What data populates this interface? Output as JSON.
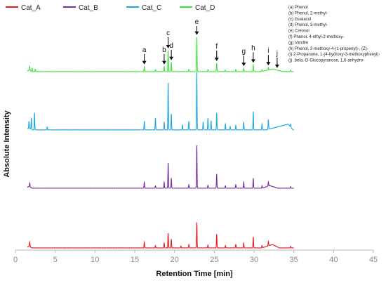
{
  "chart_data": {
    "type": "line",
    "title": "",
    "xlabel": "Retention Time [min]",
    "ylabel": "Absolute Intensity",
    "xlim": [
      0,
      45
    ],
    "x_ticks": [
      0,
      5,
      10,
      15,
      20,
      25,
      30,
      35,
      40,
      45
    ],
    "y_ticks": "none",
    "grid": false,
    "legend_position": "top-left",
    "offset_stacked": true,
    "series": [
      {
        "name": "Cat_A",
        "color": "#e8191c",
        "baseline_rel": 0.0,
        "peaks": [
          {
            "x": 1.8,
            "h": 0.1
          },
          {
            "x": 16.2,
            "h": 0.12
          },
          {
            "x": 17.6,
            "h": 0.05
          },
          {
            "x": 18.7,
            "h": 0.1
          },
          {
            "x": 19.2,
            "h": 0.3
          },
          {
            "x": 19.6,
            "h": 0.18
          },
          {
            "x": 20.8,
            "h": 0.04
          },
          {
            "x": 21.8,
            "h": 0.07
          },
          {
            "x": 22.8,
            "h": 0.52
          },
          {
            "x": 24.2,
            "h": 0.06
          },
          {
            "x": 25.3,
            "h": 0.28
          },
          {
            "x": 26.4,
            "h": 0.05
          },
          {
            "x": 27.7,
            "h": 0.07
          },
          {
            "x": 28.7,
            "h": 0.1
          },
          {
            "x": 29.9,
            "h": 0.22
          },
          {
            "x": 31.0,
            "h": 0.05
          },
          {
            "x": 31.8,
            "h": 0.09
          },
          {
            "x": 34.6,
            "h": 0.03
          }
        ],
        "hump": {
          "start": 31.0,
          "peak": 32.3,
          "end": 33.2,
          "h": 0.07
        }
      },
      {
        "name": "Cat_B",
        "color": "#7a2e9e",
        "baseline_rel": 0.0,
        "peaks": [
          {
            "x": 1.8,
            "h": 0.08
          },
          {
            "x": 16.2,
            "h": 0.12
          },
          {
            "x": 17.6,
            "h": 0.05
          },
          {
            "x": 18.7,
            "h": 0.12
          },
          {
            "x": 19.2,
            "h": 0.5
          },
          {
            "x": 19.6,
            "h": 0.2
          },
          {
            "x": 21.8,
            "h": 0.07
          },
          {
            "x": 22.8,
            "h": 0.85
          },
          {
            "x": 24.2,
            "h": 0.06
          },
          {
            "x": 25.3,
            "h": 0.28
          },
          {
            "x": 26.4,
            "h": 0.05
          },
          {
            "x": 27.7,
            "h": 0.07
          },
          {
            "x": 28.7,
            "h": 0.12
          },
          {
            "x": 29.9,
            "h": 0.2
          },
          {
            "x": 31.0,
            "h": 0.05
          },
          {
            "x": 31.8,
            "h": 0.09
          },
          {
            "x": 34.6,
            "h": 0.03
          }
        ],
        "hump": {
          "start": 31.0,
          "peak": 32.0,
          "end": 33.0,
          "h": 0.05
        }
      },
      {
        "name": "Cat_C",
        "color": "#1ea7e1",
        "baseline_rel": 0.0,
        "peaks": [
          {
            "x": 1.7,
            "h": 0.12
          },
          {
            "x": 2.0,
            "h": 0.2
          },
          {
            "x": 2.4,
            "h": 0.3
          },
          {
            "x": 4.0,
            "h": 0.05
          },
          {
            "x": 16.2,
            "h": 0.15
          },
          {
            "x": 17.6,
            "h": 0.2
          },
          {
            "x": 18.7,
            "h": 0.14
          },
          {
            "x": 19.2,
            "h": 0.82
          },
          {
            "x": 19.6,
            "h": 0.28
          },
          {
            "x": 21.0,
            "h": 0.08
          },
          {
            "x": 21.8,
            "h": 0.15
          },
          {
            "x": 22.8,
            "h": 1.0
          },
          {
            "x": 23.6,
            "h": 0.14
          },
          {
            "x": 24.2,
            "h": 0.2
          },
          {
            "x": 24.6,
            "h": 0.16
          },
          {
            "x": 25.3,
            "h": 0.3
          },
          {
            "x": 26.4,
            "h": 0.1
          },
          {
            "x": 27.0,
            "h": 0.06
          },
          {
            "x": 27.7,
            "h": 0.08
          },
          {
            "x": 28.7,
            "h": 0.14
          },
          {
            "x": 29.9,
            "h": 0.32
          },
          {
            "x": 31.0,
            "h": 0.1
          },
          {
            "x": 31.8,
            "h": 0.17
          },
          {
            "x": 34.6,
            "h": 0.05
          }
        ],
        "hump": {
          "start": 31.5,
          "peak": 34.3,
          "end": 34.9,
          "h": 0.1
        }
      },
      {
        "name": "Cat_D",
        "color": "#3de23d",
        "baseline_rel": 0.0,
        "peaks": [
          {
            "x": 1.8,
            "h": 0.1
          },
          {
            "x": 2.1,
            "h": 0.07
          },
          {
            "x": 2.5,
            "h": 0.06
          },
          {
            "x": 16.2,
            "h": 0.12
          },
          {
            "x": 17.6,
            "h": 0.05
          },
          {
            "x": 18.7,
            "h": 0.12
          },
          {
            "x": 19.2,
            "h": 0.5
          },
          {
            "x": 19.6,
            "h": 0.22
          },
          {
            "x": 21.8,
            "h": 0.05
          },
          {
            "x": 22.8,
            "h": 0.82
          },
          {
            "x": 24.2,
            "h": 0.05
          },
          {
            "x": 25.3,
            "h": 0.2
          },
          {
            "x": 26.4,
            "h": 0.04
          },
          {
            "x": 27.7,
            "h": 0.05
          },
          {
            "x": 28.7,
            "h": 0.08
          },
          {
            "x": 29.9,
            "h": 0.16
          },
          {
            "x": 31.0,
            "h": 0.04
          },
          {
            "x": 31.8,
            "h": 0.06
          },
          {
            "x": 34.6,
            "h": 0.04
          }
        ],
        "hump": {
          "start": 30.8,
          "peak": 32.4,
          "end": 33.6,
          "h": 0.06
        }
      }
    ],
    "peak_labels": [
      {
        "letter": "a",
        "x": 16.2
      },
      {
        "letter": "b",
        "x": 18.7
      },
      {
        "letter": "c",
        "x": 19.2
      },
      {
        "letter": "d",
        "x": 19.6
      },
      {
        "letter": "e",
        "x": 22.8
      },
      {
        "letter": "f",
        "x": 25.3
      },
      {
        "letter": "g",
        "x": 28.7
      },
      {
        "letter": "h",
        "x": 29.9
      },
      {
        "letter": "i",
        "x": 31.8
      },
      {
        "letter": "j",
        "x": 32.9
      }
    ],
    "compound_key": [
      "(a)  Phenol",
      "(b)  Phenol, 2-methyl-",
      "(c)  Guaiacol",
      "(d)  Phenol, 3-methyl-",
      "(e)  Creosol",
      "(f)  Phenol, 4-ethyl-2-methoxy-",
      "(g)  Vanillin",
      "(h)  Phenol, 2-methoxy-4-(1-propenyl)-, (Z)-",
      "(i)  2-Propanone, 1-(4-hydroxy-3-methoxyphenyl)-",
      "(j)  .beta.-D-Glucopyranose, 1,6-anhydro-"
    ]
  }
}
